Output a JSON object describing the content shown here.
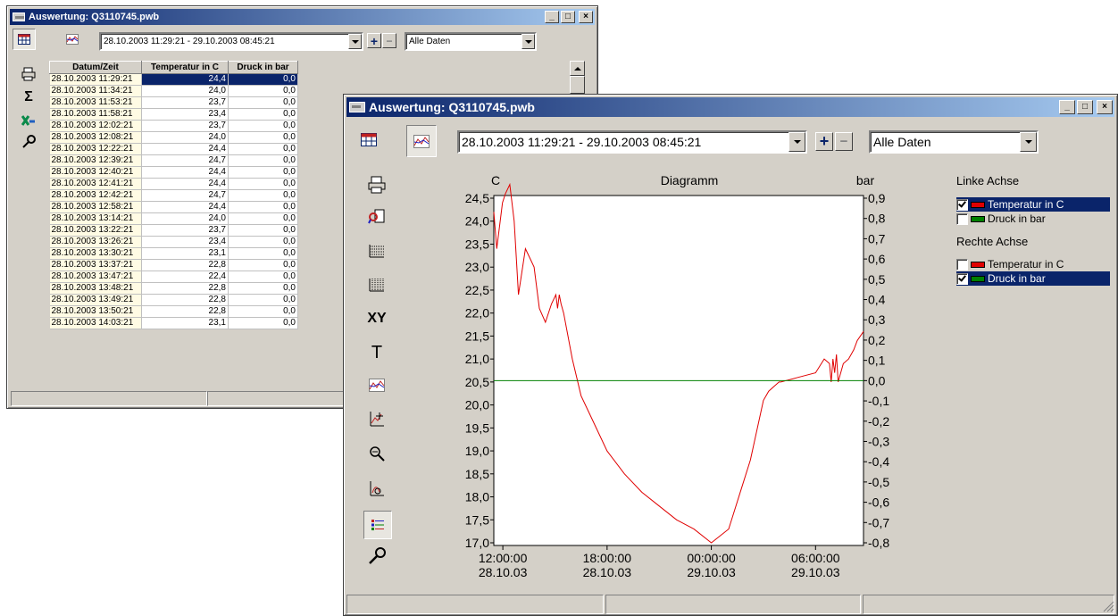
{
  "back_window": {
    "title": "Auswertung: Q3110745.pwb",
    "date_range": "28.10.2003 11:29:21 - 29.10.2003 08:45:21",
    "filter": "Alle Daten",
    "table": {
      "headers": [
        "Datum/Zeit",
        "Temperatur in C",
        "Druck in bar"
      ],
      "rows": [
        [
          "28.10.2003 11:29:21",
          "24,4",
          "0,0"
        ],
        [
          "28.10.2003 11:34:21",
          "24,0",
          "0,0"
        ],
        [
          "28.10.2003 11:53:21",
          "23,7",
          "0,0"
        ],
        [
          "28.10.2003 11:58:21",
          "23,4",
          "0,0"
        ],
        [
          "28.10.2003 12:02:21",
          "23,7",
          "0,0"
        ],
        [
          "28.10.2003 12:08:21",
          "24,0",
          "0,0"
        ],
        [
          "28.10.2003 12:22:21",
          "24,4",
          "0,0"
        ],
        [
          "28.10.2003 12:39:21",
          "24,7",
          "0,0"
        ],
        [
          "28.10.2003 12:40:21",
          "24,4",
          "0,0"
        ],
        [
          "28.10.2003 12:41:21",
          "24,4",
          "0,0"
        ],
        [
          "28.10.2003 12:42:21",
          "24,7",
          "0,0"
        ],
        [
          "28.10.2003 12:58:21",
          "24,4",
          "0,0"
        ],
        [
          "28.10.2003 13:14:21",
          "24,0",
          "0,0"
        ],
        [
          "28.10.2003 13:22:21",
          "23,7",
          "0,0"
        ],
        [
          "28.10.2003 13:26:21",
          "23,4",
          "0,0"
        ],
        [
          "28.10.2003 13:30:21",
          "23,1",
          "0,0"
        ],
        [
          "28.10.2003 13:37:21",
          "22,8",
          "0,0"
        ],
        [
          "28.10.2003 13:47:21",
          "22,4",
          "0,0"
        ],
        [
          "28.10.2003 13:48:21",
          "22,8",
          "0,0"
        ],
        [
          "28.10.2003 13:49:21",
          "22,8",
          "0,0"
        ],
        [
          "28.10.2003 13:50:21",
          "22,8",
          "0,0"
        ],
        [
          "28.10.2003 14:03:21",
          "23,1",
          "0,0"
        ]
      ]
    }
  },
  "front_window": {
    "title": "Auswertung: Q3110745.pwb",
    "date_range": "28.10.2003 11:29:21 - 29.10.2003 08:45:21",
    "filter": "Alle Daten",
    "legend": {
      "left_title": "Linke Achse",
      "right_title": "Rechte Achse",
      "left_items": [
        {
          "label": "Temperatur in C",
          "checked": true,
          "color": "#e00000"
        },
        {
          "label": "Druck in bar",
          "checked": false,
          "color": "#008000"
        }
      ],
      "right_items": [
        {
          "label": "Temperatur in C",
          "checked": false,
          "color": "#e00000"
        },
        {
          "label": "Druck in bar",
          "checked": true,
          "color": "#008000"
        }
      ]
    }
  },
  "chart_data": {
    "type": "line",
    "title": "Diagramm",
    "ylabel_left": "C",
    "ylabel_right": "bar",
    "yticks_left": [
      "24,5",
      "24,0",
      "23,5",
      "23,0",
      "22,5",
      "22,0",
      "21,5",
      "21,0",
      "20,5",
      "20,0",
      "19,5",
      "19,0",
      "18,5",
      "18,0",
      "17,5",
      "17,0"
    ],
    "yticks_right": [
      "0,9",
      "0,8",
      "0,7",
      "0,6",
      "0,5",
      "0,4",
      "0,3",
      "0,2",
      "0,1",
      "0,0",
      "-0,1",
      "-0,2",
      "-0,3",
      "-0,4",
      "-0,5",
      "-0,6",
      "-0,7",
      "-0,8"
    ],
    "xticks": [
      {
        "time": "12:00:00",
        "date": "28.10.03"
      },
      {
        "time": "18:00:00",
        "date": "28.10.03"
      },
      {
        "time": "00:00:00",
        "date": "29.10.03"
      },
      {
        "time": "06:00:00",
        "date": "29.10.03"
      }
    ],
    "ylim_left": [
      17.0,
      24.5
    ],
    "ylim_right": [
      -0.8,
      0.9
    ],
    "x_hours_since_2003_10_28_00_00": true,
    "xlim": [
      11.48,
      32.76
    ],
    "series": [
      {
        "name": "Temperatur in C",
        "axis": "left",
        "color": "#e00000",
        "x": [
          11.48,
          11.65,
          11.98,
          12.15,
          12.4,
          12.65,
          12.9,
          13.3,
          13.55,
          13.8,
          14.1,
          14.45,
          14.8,
          15.05,
          15.15,
          15.25,
          15.35,
          15.5,
          16.0,
          16.5,
          17.0,
          18.0,
          19.0,
          20.0,
          21.0,
          22.0,
          23.0,
          24.0,
          25.0,
          25.75,
          26.25,
          27.0,
          27.3,
          27.6,
          27.9,
          28.0,
          29.0,
          30.0,
          30.5,
          30.8,
          30.9,
          31.0,
          31.1,
          31.2,
          31.3,
          31.6,
          31.9,
          32.2,
          32.4,
          32.76
        ],
        "y": [
          24.2,
          23.4,
          24.4,
          24.6,
          24.8,
          24.0,
          22.4,
          23.4,
          23.2,
          23.0,
          22.1,
          21.8,
          22.2,
          22.4,
          22.1,
          22.4,
          22.2,
          22.0,
          21.0,
          20.2,
          19.8,
          19.0,
          18.5,
          18.1,
          17.8,
          17.5,
          17.3,
          17.0,
          17.3,
          18.2,
          18.8,
          20.1,
          20.3,
          20.4,
          20.5,
          20.5,
          20.6,
          20.7,
          21.0,
          20.9,
          20.5,
          21.0,
          20.7,
          21.1,
          20.5,
          20.9,
          21.0,
          21.2,
          21.4,
          21.6
        ]
      },
      {
        "name": "Druck in bar",
        "axis": "right",
        "color": "#008000",
        "x": [
          11.48,
          32.76
        ],
        "y": [
          0.0,
          0.0
        ]
      }
    ]
  }
}
